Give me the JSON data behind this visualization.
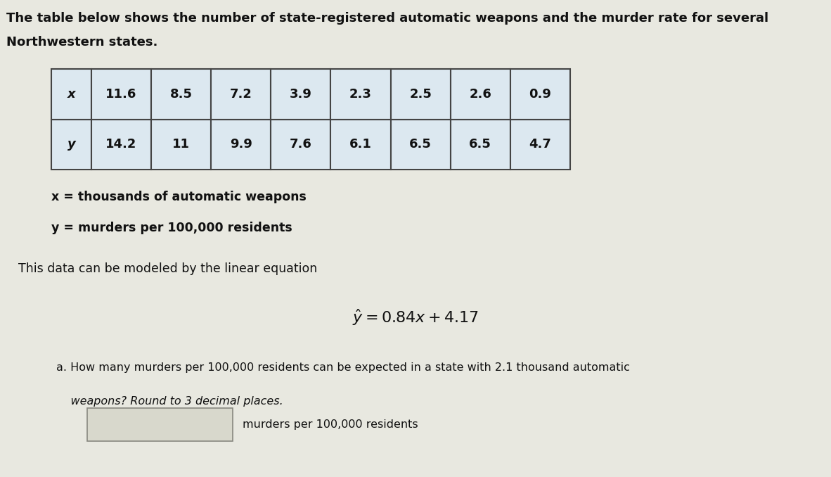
{
  "title_line1": "The table below shows the number of state-registered automatic weapons and the murder rate for several",
  "title_line2": "Northwestern states.",
  "x_values": [
    "11.6",
    "8.5",
    "7.2",
    "3.9",
    "2.3",
    "2.5",
    "2.6",
    "0.9"
  ],
  "y_values": [
    "14.2",
    "11",
    "9.9",
    "7.6",
    "6.1",
    "6.5",
    "6.5",
    "4.7"
  ],
  "x_label": "x",
  "y_label": "y",
  "legend_x": "x = thousands of automatic weapons",
  "legend_y": "y = murders per 100,000 residents",
  "model_text": "This data can be modeled by the linear equation",
  "equation": "$\\hat{y} = 0.84x + 4.17$",
  "answer_label": "murders per 100,000 residents",
  "bg_color": "#e8e8e0",
  "cell_color": "#dce8f0",
  "label_cell_color": "#dce8f0",
  "text_color": "#111111",
  "input_box_color": "#d8d8cc",
  "border_color": "#444444"
}
